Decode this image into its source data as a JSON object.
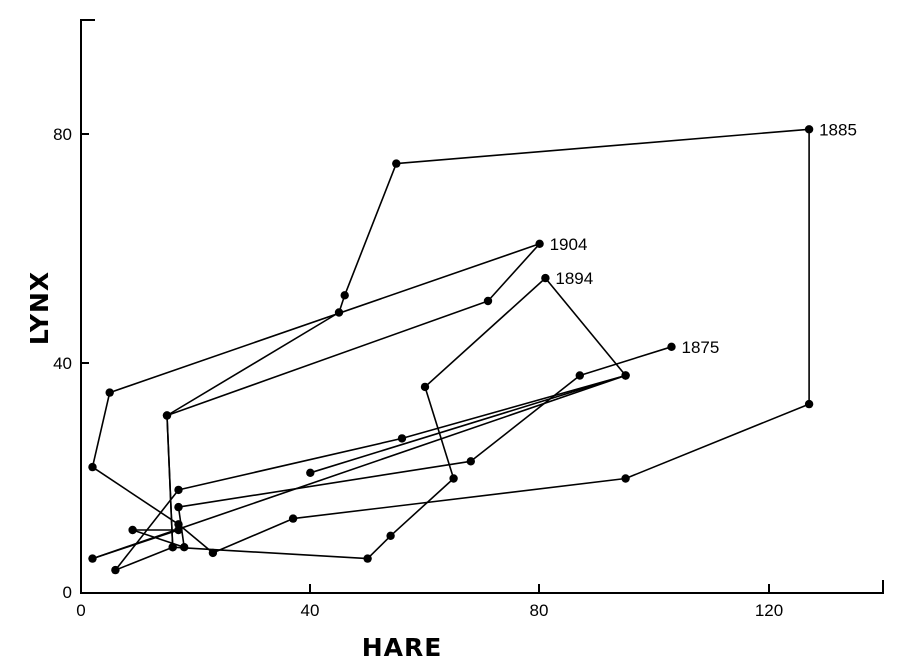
{
  "chart_data": {
    "type": "line",
    "title": "",
    "xlabel": "HARE",
    "ylabel": "LYNX",
    "xlim": [
      0,
      140
    ],
    "ylim": [
      0,
      100
    ],
    "x_ticks": [
      "0",
      "40",
      "80",
      "120"
    ],
    "y_ticks": [
      "0",
      "40",
      "80"
    ],
    "grid": false,
    "series": [
      {
        "points": [
          {
            "x": 103,
            "y": 43,
            "year": "1875"
          },
          {
            "x": 87,
            "y": 38
          },
          {
            "x": 68,
            "y": 23
          },
          {
            "x": 17,
            "y": 15
          },
          {
            "x": 18,
            "y": 8
          },
          {
            "x": 9,
            "y": 11
          },
          {
            "x": 17,
            "y": 11
          },
          {
            "x": 2,
            "y": 6
          },
          {
            "x": 95,
            "y": 38
          },
          {
            "x": 56,
            "y": 27
          },
          {
            "x": 17,
            "y": 18
          },
          {
            "x": 6,
            "y": 4
          },
          {
            "x": 16,
            "y": 8
          },
          {
            "x": 15,
            "y": 31
          },
          {
            "x": 71,
            "y": 51
          },
          {
            "x": 80,
            "y": 61,
            "year": "1904"
          },
          {
            "x": 5,
            "y": 35
          },
          {
            "x": 2,
            "y": 22
          },
          {
            "x": 17,
            "y": 12
          },
          {
            "x": 23,
            "y": 7
          },
          {
            "x": 37,
            "y": 13
          },
          {
            "x": 95,
            "y": 20
          },
          {
            "x": 127,
            "y": 33
          },
          {
            "x": 127,
            "y": 81,
            "year": "1885"
          },
          {
            "x": 55,
            "y": 75
          },
          {
            "x": 46,
            "y": 52
          },
          {
            "x": 45,
            "y": 49
          },
          {
            "x": 15,
            "y": 31
          },
          {
            "x": 16,
            "y": 8
          },
          {
            "x": 50,
            "y": 6
          },
          {
            "x": 54,
            "y": 10
          },
          {
            "x": 65,
            "y": 20
          },
          {
            "x": 60,
            "y": 36
          },
          {
            "x": 81,
            "y": 55,
            "year": "1894"
          },
          {
            "x": 95,
            "y": 38
          },
          {
            "x": 40,
            "y": 21
          }
        ]
      }
    ]
  }
}
